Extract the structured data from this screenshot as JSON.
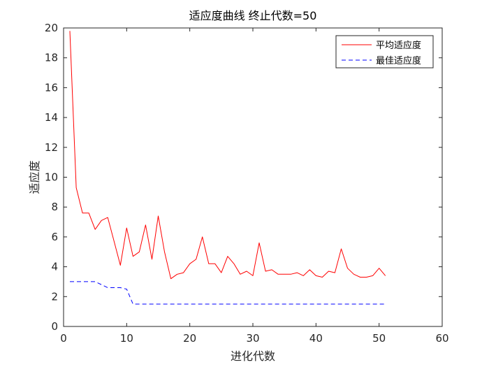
{
  "chart_data": {
    "type": "line",
    "title": "适应度曲线  终止代数=50",
    "xlabel": "进化代数",
    "ylabel": "适应度",
    "xlim": [
      0,
      60
    ],
    "ylim": [
      0,
      20
    ],
    "xticks": [
      0,
      10,
      20,
      30,
      40,
      50,
      60
    ],
    "yticks": [
      0,
      2,
      4,
      6,
      8,
      10,
      12,
      14,
      16,
      18,
      20
    ],
    "grid": false,
    "legend_position": "top-right",
    "series": [
      {
        "name": "平均适应度",
        "color": "#ff0000",
        "style": "solid",
        "x": [
          1,
          2,
          3,
          4,
          5,
          6,
          7,
          8,
          9,
          10,
          11,
          12,
          13,
          14,
          15,
          16,
          17,
          18,
          19,
          20,
          21,
          22,
          23,
          24,
          25,
          26,
          27,
          28,
          29,
          30,
          31,
          32,
          33,
          34,
          35,
          36,
          37,
          38,
          39,
          40,
          41,
          42,
          43,
          44,
          45,
          46,
          47,
          48,
          49,
          50,
          51
        ],
        "values": [
          19.8,
          9.3,
          7.6,
          7.6,
          6.5,
          7.1,
          7.3,
          5.7,
          4.1,
          6.6,
          4.7,
          5.0,
          6.8,
          4.5,
          7.4,
          5.0,
          3.2,
          3.5,
          3.6,
          4.2,
          4.5,
          6.0,
          4.2,
          4.2,
          3.6,
          4.7,
          4.2,
          3.5,
          3.7,
          3.4,
          5.6,
          3.7,
          3.8,
          3.5,
          3.5,
          3.5,
          3.6,
          3.4,
          3.8,
          3.4,
          3.3,
          3.7,
          3.6,
          5.2,
          3.9,
          3.5,
          3.3,
          3.3,
          3.4,
          3.9,
          3.4
        ]
      },
      {
        "name": "最佳适应度",
        "color": "#0000ff",
        "style": "dashed",
        "x": [
          1,
          2,
          3,
          4,
          5,
          6,
          7,
          8,
          9,
          10,
          11,
          12,
          13,
          14,
          15,
          16,
          17,
          18,
          19,
          20,
          21,
          22,
          23,
          24,
          25,
          26,
          27,
          28,
          29,
          30,
          31,
          32,
          33,
          34,
          35,
          36,
          37,
          38,
          39,
          40,
          41,
          42,
          43,
          44,
          45,
          46,
          47,
          48,
          49,
          50,
          51
        ],
        "values": [
          3.0,
          3.0,
          3.0,
          3.0,
          3.0,
          2.8,
          2.6,
          2.6,
          2.6,
          2.5,
          1.5,
          1.5,
          1.5,
          1.5,
          1.5,
          1.5,
          1.5,
          1.5,
          1.5,
          1.5,
          1.5,
          1.5,
          1.5,
          1.5,
          1.5,
          1.5,
          1.5,
          1.5,
          1.5,
          1.5,
          1.5,
          1.5,
          1.5,
          1.5,
          1.5,
          1.5,
          1.5,
          1.5,
          1.5,
          1.5,
          1.5,
          1.5,
          1.5,
          1.5,
          1.5,
          1.5,
          1.5,
          1.5,
          1.5,
          1.5,
          1.5
        ]
      }
    ]
  }
}
